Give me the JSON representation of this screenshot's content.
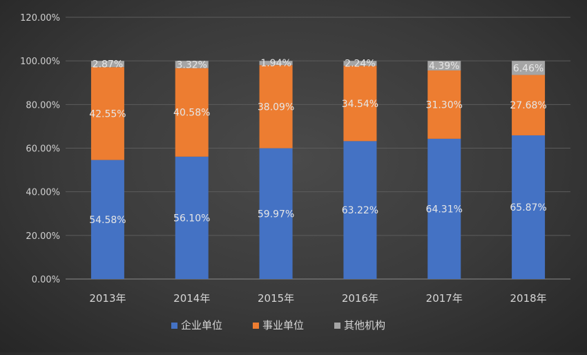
{
  "chart_data": {
    "type": "bar",
    "stacked": true,
    "categories": [
      "2013年",
      "2014年",
      "2015年",
      "2016年",
      "2017年",
      "2018年"
    ],
    "series": [
      {
        "name": "企业单位",
        "values": [
          54.58,
          56.1,
          59.97,
          63.22,
          64.31,
          65.87
        ],
        "labels": [
          "54.58%",
          "56.10%",
          "59.97%",
          "63.22%",
          "64.31%",
          "65.87%"
        ],
        "color": "#4472c4"
      },
      {
        "name": "事业单位",
        "values": [
          42.55,
          40.58,
          38.09,
          34.54,
          31.3,
          27.68
        ],
        "labels": [
          "42.55%",
          "40.58%",
          "38.09%",
          "34.54%",
          "31.30%",
          "27.68%"
        ],
        "color": "#ed7d31"
      },
      {
        "name": "其他机构",
        "values": [
          2.87,
          3.32,
          1.94,
          2.24,
          4.39,
          6.46
        ],
        "labels": [
          "2.87%",
          "3.32%",
          "1.94%",
          "2.24%",
          "4.39%",
          "6.46%"
        ],
        "color": "#a5a5a5"
      }
    ],
    "ylim": [
      0,
      120
    ],
    "yticks": [
      0,
      20,
      40,
      60,
      80,
      100,
      120
    ],
    "ytick_labels": [
      "0.00%",
      "20.00%",
      "40.00%",
      "60.00%",
      "80.00%",
      "100.00%",
      "120.00%"
    ],
    "grid": true,
    "legend_position": "bottom",
    "title": "",
    "xlabel": "",
    "ylabel": ""
  }
}
